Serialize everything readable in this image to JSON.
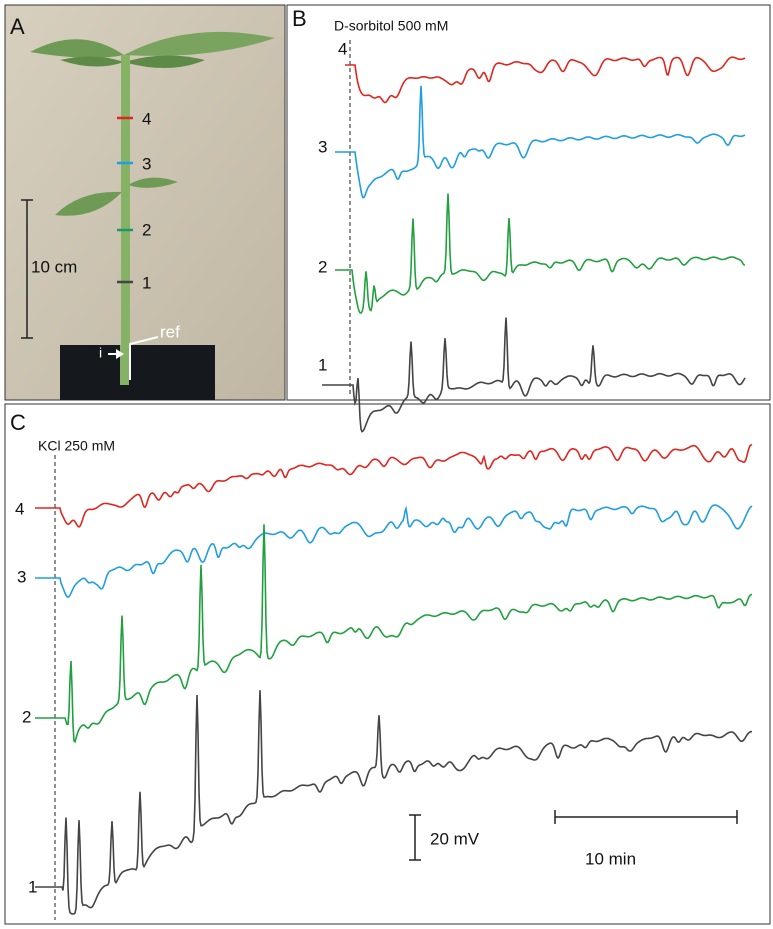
{
  "panels": {
    "A": {
      "label": "A",
      "positions": [
        "4",
        "3",
        "2",
        "1"
      ],
      "scale": "10 cm",
      "ref": "ref",
      "i": "i"
    },
    "B": {
      "label": "B",
      "treatment": "D-sorbitol 500 mM",
      "traces": [
        "4",
        "3",
        "2",
        "1"
      ]
    },
    "C": {
      "label": "C",
      "treatment": "KCl 250 mM",
      "traces": [
        "4",
        "3",
        "2",
        "1"
      ],
      "scale_voltage": "20 mV",
      "scale_time": "10 min"
    }
  }
}
